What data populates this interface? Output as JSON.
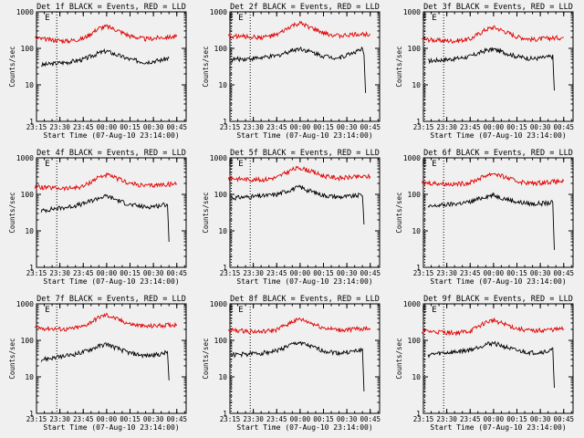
{
  "colors": {
    "events": "#000000",
    "lld": "#e00000",
    "background": "#f0f0f0"
  },
  "chart_data": {
    "type": "line",
    "y_scale": "log",
    "ylim": [
      1,
      1000
    ],
    "y_tick_labels": [
      "1",
      "10",
      "100",
      "1000"
    ],
    "x_tick_labels": [
      "23:15",
      "23:30",
      "23:45",
      "00:00",
      "00:15",
      "00:30",
      "00:45"
    ],
    "xlabel": "Start Time (07-Aug-10 23:14:00)",
    "ylabel": "Counts/sec",
    "markers": [
      "E",
      "E"
    ],
    "panels": [
      {
        "title": "Det 1f  BLACK = Events, RED = LLD",
        "series": [
          {
            "name": "Events",
            "x": [
              "23:18",
              "23:25",
              "23:35",
              "23:45",
              "23:55",
              "00:00",
              "00:05",
              "00:15",
              "00:25",
              "00:35",
              "00:40"
            ],
            "y": [
              35,
              38,
              42,
              50,
              75,
              85,
              70,
              50,
              42,
              48,
              55
            ]
          },
          {
            "name": "LLD",
            "x": [
              "23:14",
              "23:25",
              "23:35",
              "23:45",
              "23:55",
              "00:00",
              "00:05",
              "00:15",
              "00:25",
              "00:35",
              "00:45"
            ],
            "y": [
              190,
              170,
              160,
              185,
              360,
              400,
              340,
              220,
              180,
              200,
              210
            ]
          }
        ]
      },
      {
        "title": "Det 2f  BLACK = Events, RED = LLD",
        "series": [
          {
            "name": "Events",
            "x": [
              "23:16",
              "23:25",
              "23:35",
              "23:45",
              "23:55",
              "00:00",
              "00:05",
              "00:15",
              "00:25",
              "00:35",
              "00:40",
              "00:41",
              "00:42"
            ],
            "y": [
              50,
              52,
              55,
              62,
              90,
              100,
              85,
              62,
              55,
              80,
              95,
              60,
              6
            ]
          },
          {
            "name": "LLD",
            "x": [
              "23:14",
              "23:25",
              "23:35",
              "23:45",
              "23:55",
              "00:00",
              "00:05",
              "00:15",
              "00:25",
              "00:35",
              "00:45"
            ],
            "y": [
              220,
              210,
              200,
              230,
              420,
              480,
              400,
              260,
              220,
              240,
              250
            ]
          }
        ]
      },
      {
        "title": "Det 3f  BLACK = Events, RED = LLD",
        "series": [
          {
            "name": "Events",
            "x": [
              "23:18",
              "23:25",
              "23:35",
              "23:45",
              "23:55",
              "00:00",
              "00:05",
              "00:15",
              "00:25",
              "00:35",
              "00:38",
              "00:39"
            ],
            "y": [
              45,
              48,
              52,
              60,
              88,
              95,
              82,
              60,
              52,
              58,
              60,
              7
            ]
          },
          {
            "name": "LLD",
            "x": [
              "23:14",
              "23:25",
              "23:35",
              "23:45",
              "23:55",
              "00:00",
              "00:05",
              "00:15",
              "00:25",
              "00:35",
              "00:45"
            ],
            "y": [
              180,
              165,
              160,
              180,
              330,
              380,
              320,
              210,
              175,
              190,
              200
            ]
          }
        ]
      },
      {
        "title": "Det 4f  BLACK = Events, RED = LLD",
        "series": [
          {
            "name": "Events",
            "x": [
              "23:18",
              "23:25",
              "23:35",
              "23:45",
              "23:55",
              "00:00",
              "00:05",
              "00:15",
              "00:25",
              "00:35",
              "00:39",
              "00:40"
            ],
            "y": [
              35,
              40,
              45,
              55,
              80,
              90,
              75,
              52,
              45,
              50,
              55,
              5
            ]
          },
          {
            "name": "LLD",
            "x": [
              "23:14",
              "23:25",
              "23:35",
              "23:45",
              "23:55",
              "00:00",
              "00:05",
              "00:15",
              "00:25",
              "00:35",
              "00:45"
            ],
            "y": [
              160,
              150,
              145,
              165,
              300,
              340,
              290,
              200,
              170,
              185,
              195
            ]
          }
        ]
      },
      {
        "title": "Det 5f  BLACK = Events, RED = LLD",
        "series": [
          {
            "name": "Events",
            "x": [
              "23:16",
              "23:25",
              "23:35",
              "23:45",
              "23:55",
              "00:00",
              "00:05",
              "00:15",
              "00:25",
              "00:35",
              "00:40",
              "00:41"
            ],
            "y": [
              80,
              85,
              90,
              100,
              140,
              160,
              130,
              95,
              85,
              90,
              100,
              15
            ]
          },
          {
            "name": "LLD",
            "x": [
              "23:14",
              "23:25",
              "23:35",
              "23:45",
              "23:55",
              "00:00",
              "00:05",
              "00:15",
              "00:25",
              "00:35",
              "00:45"
            ],
            "y": [
              280,
              260,
              250,
              290,
              480,
              540,
              460,
              320,
              280,
              300,
              310
            ]
          }
        ]
      },
      {
        "title": "Det 6f  BLACK = Events, RED = LLD",
        "series": [
          {
            "name": "Events",
            "x": [
              "23:18",
              "23:25",
              "23:35",
              "23:45",
              "23:55",
              "00:00",
              "00:05",
              "00:15",
              "00:25",
              "00:35",
              "00:38",
              "00:39"
            ],
            "y": [
              45,
              50,
              55,
              62,
              88,
              95,
              82,
              62,
              55,
              58,
              60,
              3
            ]
          },
          {
            "name": "LLD",
            "x": [
              "23:14",
              "23:25",
              "23:35",
              "23:45",
              "23:55",
              "00:00",
              "00:05",
              "00:15",
              "00:25",
              "00:35",
              "00:45"
            ],
            "y": [
              210,
              200,
              190,
              210,
              330,
              380,
              320,
              230,
              200,
              220,
              230
            ]
          }
        ]
      },
      {
        "title": "Det 7f  BLACK = Events, RED = LLD",
        "series": [
          {
            "name": "Events",
            "x": [
              "23:18",
              "23:25",
              "23:35",
              "23:45",
              "23:55",
              "00:00",
              "00:05",
              "00:15",
              "00:25",
              "00:35",
              "00:39",
              "00:40"
            ],
            "y": [
              30,
              33,
              38,
              48,
              70,
              80,
              65,
              45,
              38,
              42,
              48,
              8
            ]
          },
          {
            "name": "LLD",
            "x": [
              "23:14",
              "23:25",
              "23:35",
              "23:45",
              "23:55",
              "00:00",
              "00:05",
              "00:15",
              "00:25",
              "00:35",
              "00:45"
            ],
            "y": [
              220,
              210,
              200,
              240,
              430,
              500,
              410,
              280,
              240,
              260,
              270
            ]
          }
        ]
      },
      {
        "title": "Det 8f  BLACK = Events, RED = LLD",
        "series": [
          {
            "name": "Events",
            "x": [
              "23:16",
              "23:25",
              "23:35",
              "23:45",
              "23:55",
              "00:00",
              "00:05",
              "00:15",
              "00:25",
              "00:35",
              "00:40",
              "00:41"
            ],
            "y": [
              40,
              42,
              45,
              52,
              78,
              88,
              72,
              52,
              45,
              50,
              55,
              4
            ]
          },
          {
            "name": "LLD",
            "x": [
              "23:14",
              "23:25",
              "23:35",
              "23:45",
              "23:55",
              "00:00",
              "00:05",
              "00:15",
              "00:25",
              "00:35",
              "00:45"
            ],
            "y": [
              190,
              180,
              170,
              195,
              330,
              380,
              320,
              220,
              190,
              205,
              215
            ]
          }
        ]
      },
      {
        "title": "Det 9f  BLACK = Events, RED = LLD",
        "series": [
          {
            "name": "Events",
            "x": [
              "23:18",
              "23:25",
              "23:35",
              "23:45",
              "23:55",
              "00:00",
              "00:05",
              "00:15",
              "00:25",
              "00:35",
              "00:38",
              "00:39"
            ],
            "y": [
              40,
              44,
              48,
              55,
              78,
              85,
              72,
              52,
              46,
              50,
              55,
              5
            ]
          },
          {
            "name": "LLD",
            "x": [
              "23:14",
              "23:25",
              "23:35",
              "23:45",
              "23:55",
              "00:00",
              "00:05",
              "00:15",
              "00:25",
              "00:35",
              "00:45"
            ],
            "y": [
              180,
              170,
              160,
              180,
              310,
              360,
              300,
              210,
              180,
              195,
              205
            ]
          }
        ]
      }
    ]
  }
}
